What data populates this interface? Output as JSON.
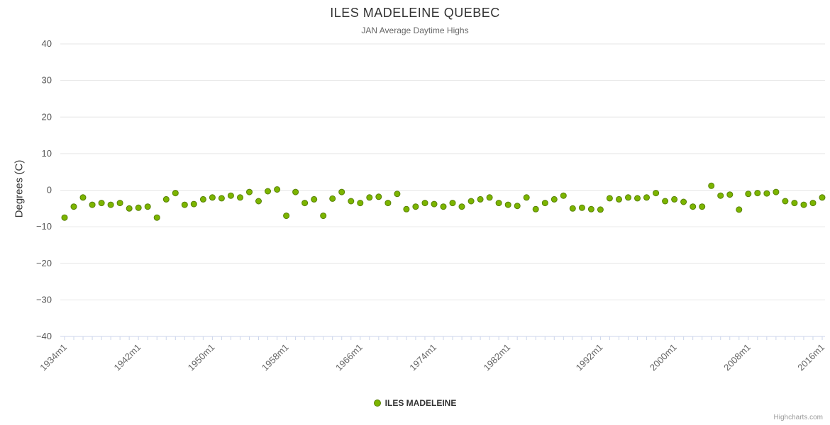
{
  "title": "ILES MADELEINE QUEBEC",
  "subtitle": "JAN Average Daytime Highs",
  "y_axis_title": "Degrees (C)",
  "legend": {
    "label": "ILES MADELEINE"
  },
  "credits": "Highcharts.com",
  "colors": {
    "point_fill": "#7cb500",
    "point_stroke": "#568000",
    "grid": "#e6e6e6",
    "axis_line": "#ccd6eb",
    "axis_label": "#666666"
  },
  "chart_data": {
    "type": "scatter",
    "title": "ILES MADELEINE QUEBEC",
    "subtitle": "JAN Average Daytime Highs",
    "ylabel": "Degrees (C)",
    "ylim": [
      -40,
      40
    ],
    "y_ticks": [
      -40,
      -30,
      -20,
      -10,
      0,
      10,
      20,
      30,
      40
    ],
    "x_suffix": "m1",
    "x_tick_years": [
      1934,
      1942,
      1950,
      1958,
      1966,
      1974,
      1982,
      1992,
      2000,
      2008,
      2016
    ],
    "x_tick_labels": [
      "1934m1",
      "1942m1",
      "1950m1",
      "1958m1",
      "1966m1",
      "1974m1",
      "1982m1",
      "1992m1",
      "2000m1",
      "2008m1",
      "2016m1"
    ],
    "legend_position": "bottom",
    "grid": true,
    "series": [
      {
        "name": "ILES MADELEINE",
        "color": "#7cb500",
        "years": [
          1934,
          1935,
          1936,
          1937,
          1938,
          1939,
          1940,
          1941,
          1942,
          1943,
          1944,
          1945,
          1946,
          1947,
          1948,
          1949,
          1950,
          1951,
          1952,
          1953,
          1954,
          1955,
          1956,
          1957,
          1958,
          1959,
          1960,
          1961,
          1962,
          1963,
          1964,
          1965,
          1966,
          1967,
          1968,
          1969,
          1970,
          1971,
          1972,
          1973,
          1974,
          1975,
          1976,
          1977,
          1978,
          1979,
          1980,
          1981,
          1982,
          1983,
          1984,
          1985,
          1986,
          1987,
          1988,
          1989,
          1990,
          1991,
          1992,
          1993,
          1994,
          1995,
          1996,
          1997,
          1998,
          1999,
          2000,
          2001,
          2002,
          2003,
          2004,
          2005,
          2006,
          2007,
          2008,
          2009,
          2010,
          2011,
          2012,
          2013,
          2014,
          2015,
          2016
        ],
        "values": [
          -7.5,
          -4.5,
          -2.0,
          -4.0,
          -3.5,
          -4.0,
          -3.5,
          -5.0,
          -4.8,
          -4.5,
          -7.5,
          -2.5,
          -0.8,
          -4.0,
          -3.8,
          -2.5,
          -2.0,
          -2.2,
          -1.5,
          -2.0,
          -0.5,
          -3.0,
          -0.3,
          0.2,
          -7.0,
          -0.5,
          -3.5,
          -2.5,
          -7.0,
          -2.3,
          -0.5,
          -3.0,
          -3.5,
          -2.0,
          -1.8,
          -3.5,
          -1.0,
          -5.2,
          -4.5,
          -3.5,
          -3.8,
          -4.5,
          -3.5,
          -4.5,
          -3.0,
          -2.5,
          -2.0,
          -3.5,
          -4.0,
          -4.3,
          -2.0,
          -5.2,
          -3.5,
          -2.5,
          -1.5,
          -5.0,
          -4.8,
          -5.2,
          -5.3,
          -2.2,
          -2.5,
          -2.0,
          -2.2,
          -2.0,
          -0.8,
          -3.0,
          -2.5,
          -3.2,
          -4.5,
          -4.5,
          1.2,
          -1.5,
          -1.2,
          -5.3,
          -1.0,
          -0.8,
          -0.9,
          -0.5,
          -3.0,
          -3.5,
          -4.0,
          -3.5,
          -2.0
        ]
      }
    ]
  }
}
